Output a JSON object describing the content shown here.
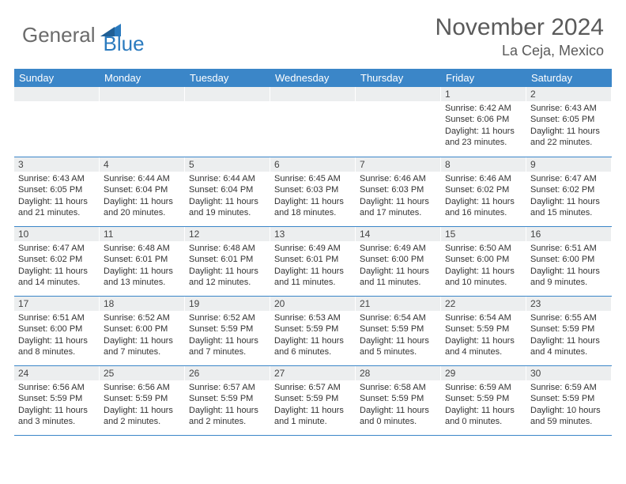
{
  "logo": {
    "part1": "General",
    "part2": "Blue"
  },
  "title": "November 2024",
  "location": "La Ceja, Mexico",
  "colors": {
    "header_bg": "#3b86c8",
    "row_border": "#3b86c8",
    "daynum_bg": "#eceeef",
    "text": "#333333",
    "title_text": "#5a5a5a",
    "logo_gray": "#6b6b6b",
    "logo_blue": "#2b7bbf"
  },
  "weekdays": [
    "Sunday",
    "Monday",
    "Tuesday",
    "Wednesday",
    "Thursday",
    "Friday",
    "Saturday"
  ],
  "weeks": [
    [
      null,
      null,
      null,
      null,
      null,
      {
        "n": "1",
        "sr": "6:42 AM",
        "ss": "6:06 PM",
        "dl": "11 hours and 23 minutes."
      },
      {
        "n": "2",
        "sr": "6:43 AM",
        "ss": "6:05 PM",
        "dl": "11 hours and 22 minutes."
      }
    ],
    [
      {
        "n": "3",
        "sr": "6:43 AM",
        "ss": "6:05 PM",
        "dl": "11 hours and 21 minutes."
      },
      {
        "n": "4",
        "sr": "6:44 AM",
        "ss": "6:04 PM",
        "dl": "11 hours and 20 minutes."
      },
      {
        "n": "5",
        "sr": "6:44 AM",
        "ss": "6:04 PM",
        "dl": "11 hours and 19 minutes."
      },
      {
        "n": "6",
        "sr": "6:45 AM",
        "ss": "6:03 PM",
        "dl": "11 hours and 18 minutes."
      },
      {
        "n": "7",
        "sr": "6:46 AM",
        "ss": "6:03 PM",
        "dl": "11 hours and 17 minutes."
      },
      {
        "n": "8",
        "sr": "6:46 AM",
        "ss": "6:02 PM",
        "dl": "11 hours and 16 minutes."
      },
      {
        "n": "9",
        "sr": "6:47 AM",
        "ss": "6:02 PM",
        "dl": "11 hours and 15 minutes."
      }
    ],
    [
      {
        "n": "10",
        "sr": "6:47 AM",
        "ss": "6:02 PM",
        "dl": "11 hours and 14 minutes."
      },
      {
        "n": "11",
        "sr": "6:48 AM",
        "ss": "6:01 PM",
        "dl": "11 hours and 13 minutes."
      },
      {
        "n": "12",
        "sr": "6:48 AM",
        "ss": "6:01 PM",
        "dl": "11 hours and 12 minutes."
      },
      {
        "n": "13",
        "sr": "6:49 AM",
        "ss": "6:01 PM",
        "dl": "11 hours and 11 minutes."
      },
      {
        "n": "14",
        "sr": "6:49 AM",
        "ss": "6:00 PM",
        "dl": "11 hours and 11 minutes."
      },
      {
        "n": "15",
        "sr": "6:50 AM",
        "ss": "6:00 PM",
        "dl": "11 hours and 10 minutes."
      },
      {
        "n": "16",
        "sr": "6:51 AM",
        "ss": "6:00 PM",
        "dl": "11 hours and 9 minutes."
      }
    ],
    [
      {
        "n": "17",
        "sr": "6:51 AM",
        "ss": "6:00 PM",
        "dl": "11 hours and 8 minutes."
      },
      {
        "n": "18",
        "sr": "6:52 AM",
        "ss": "6:00 PM",
        "dl": "11 hours and 7 minutes."
      },
      {
        "n": "19",
        "sr": "6:52 AM",
        "ss": "5:59 PM",
        "dl": "11 hours and 7 minutes."
      },
      {
        "n": "20",
        "sr": "6:53 AM",
        "ss": "5:59 PM",
        "dl": "11 hours and 6 minutes."
      },
      {
        "n": "21",
        "sr": "6:54 AM",
        "ss": "5:59 PM",
        "dl": "11 hours and 5 minutes."
      },
      {
        "n": "22",
        "sr": "6:54 AM",
        "ss": "5:59 PM",
        "dl": "11 hours and 4 minutes."
      },
      {
        "n": "23",
        "sr": "6:55 AM",
        "ss": "5:59 PM",
        "dl": "11 hours and 4 minutes."
      }
    ],
    [
      {
        "n": "24",
        "sr": "6:56 AM",
        "ss": "5:59 PM",
        "dl": "11 hours and 3 minutes."
      },
      {
        "n": "25",
        "sr": "6:56 AM",
        "ss": "5:59 PM",
        "dl": "11 hours and 2 minutes."
      },
      {
        "n": "26",
        "sr": "6:57 AM",
        "ss": "5:59 PM",
        "dl": "11 hours and 2 minutes."
      },
      {
        "n": "27",
        "sr": "6:57 AM",
        "ss": "5:59 PM",
        "dl": "11 hours and 1 minute."
      },
      {
        "n": "28",
        "sr": "6:58 AM",
        "ss": "5:59 PM",
        "dl": "11 hours and 0 minutes."
      },
      {
        "n": "29",
        "sr": "6:59 AM",
        "ss": "5:59 PM",
        "dl": "11 hours and 0 minutes."
      },
      {
        "n": "30",
        "sr": "6:59 AM",
        "ss": "5:59 PM",
        "dl": "10 hours and 59 minutes."
      }
    ]
  ],
  "labels": {
    "sunrise": "Sunrise: ",
    "sunset": "Sunset: ",
    "daylight": "Daylight: "
  }
}
